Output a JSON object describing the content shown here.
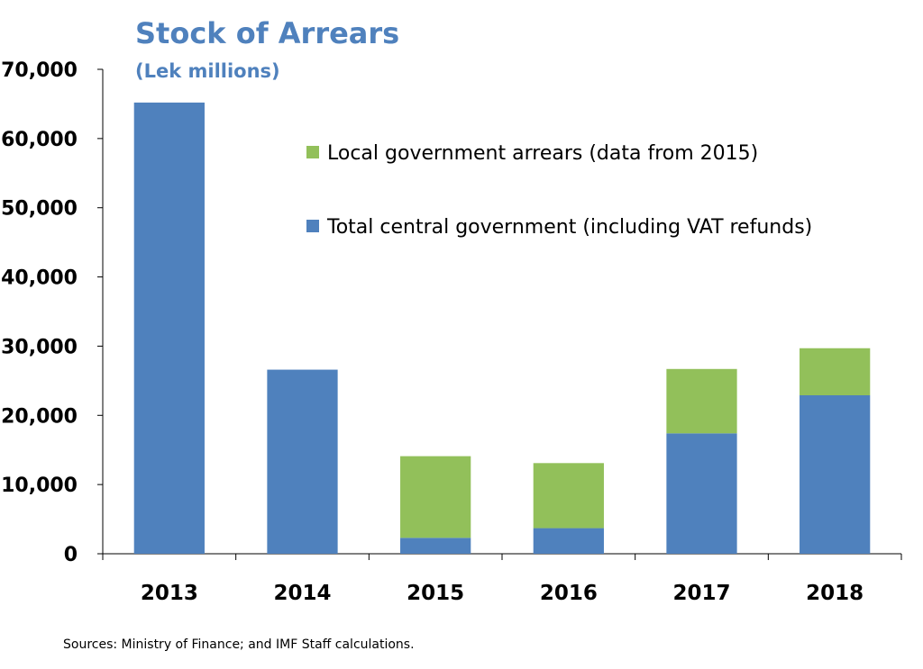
{
  "chart_data": {
    "type": "bar",
    "stacked": true,
    "title": "Stock of Arrears",
    "subtitle": "(Lek millions)",
    "categories": [
      "2013",
      "2014",
      "2015",
      "2016",
      "2017",
      "2018"
    ],
    "series": [
      {
        "name": "Total central government (including VAT refunds)",
        "color": "#4f81bd",
        "values": [
          65200,
          26600,
          2300,
          3700,
          17400,
          22900
        ]
      },
      {
        "name": "Local government arrears (data from 2015)",
        "color": "#92c05a",
        "values": [
          0,
          0,
          11800,
          9400,
          9300,
          6800
        ]
      }
    ],
    "ylim": [
      0,
      70000
    ],
    "yticks": [
      0,
      10000,
      20000,
      30000,
      40000,
      50000,
      60000,
      70000
    ],
    "ytick_labels": [
      "0",
      "10,000",
      "20,000",
      "30,000",
      "40,000",
      "50,000",
      "60,000",
      "70,000"
    ],
    "grid": false,
    "legend_position": "top-right",
    "title_color": "#4f81bd"
  },
  "source": "Sources: Ministry of Finance; and IMF Staff calculations."
}
